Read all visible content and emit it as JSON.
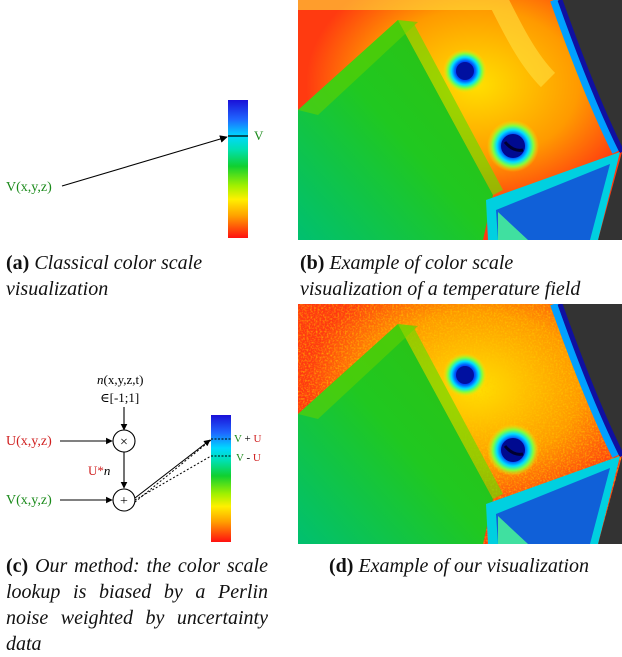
{
  "panel_a": {
    "var_label": "V(x,y,z)",
    "scale_label": "V",
    "caption_label": "(a)",
    "caption_text": "Classical color scale visualization"
  },
  "panel_b": {
    "caption_label": "(b)",
    "caption_text": "Example of color scale visualization of a temperature field"
  },
  "panel_c": {
    "noise_label_n": "n",
    "noise_label_args": "(x,y,z,t)",
    "noise_range": "∈[-1;1]",
    "u_label": "U(x,y,z)",
    "times_symbol": "×",
    "weighted_label_u": "U*",
    "weighted_label_n": "n",
    "plus_symbol": "+",
    "v_label": "V(x,y,z)",
    "upper_label_v": "V",
    "upper_label_op": " + ",
    "upper_label_u": "U",
    "lower_label_v": "V",
    "lower_label_op": " - ",
    "lower_label_u": "U",
    "caption_label": "(c)",
    "caption_text": "Our method: the color scale lookup is biased by a Perlin noise weighted by uncertainty data"
  },
  "panel_d": {
    "caption_label": "(d)",
    "caption_text": "Example of our visualization"
  },
  "colors": {
    "green_label": "#1a8a1a",
    "red_label": "#d02020"
  }
}
